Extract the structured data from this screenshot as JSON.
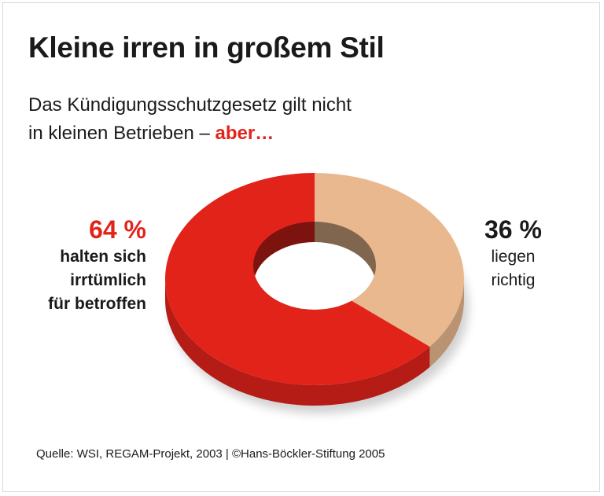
{
  "title": "Kleine irren in großem Stil",
  "subtitle": {
    "line1": "Das Kündigungsschutzgesetz gilt nicht",
    "line2": "in kleinen Betrieben –",
    "accent": "aber…"
  },
  "source": "Quelle: WSI, REGAM-Projekt, 2003 | ©Hans-Böckler-Stiftung 2005",
  "chart_data": {
    "type": "pie",
    "style": "3d donut",
    "slices": [
      {
        "label": "liegen richtig",
        "value": 36,
        "display": "36 %",
        "text_lines": [
          "liegen",
          "richtig"
        ],
        "color": "#e9b88f"
      },
      {
        "label": "halten sich irrtümlich für betroffen",
        "value": 64,
        "display": "64 %",
        "text_lines": [
          "halten sich",
          "irrtümlich",
          "für betroffen"
        ],
        "color": "#e2231a"
      }
    ]
  }
}
